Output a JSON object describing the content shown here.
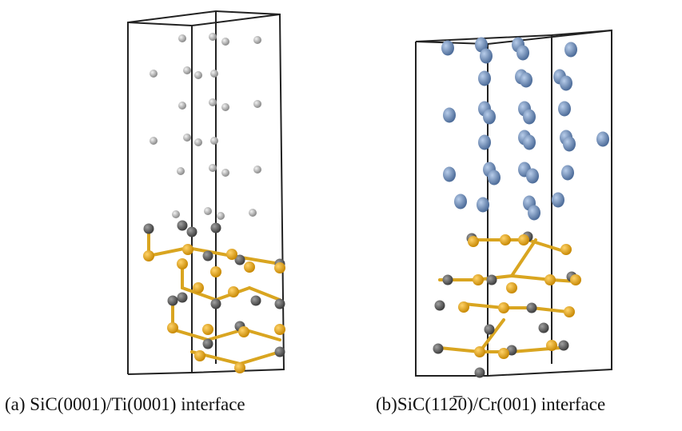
{
  "figure": {
    "panels": [
      {
        "caption": "(a) SiC(0001)/Ti(0001) interface"
      },
      {
        "caption": "(b)SiC(112̅0)/Cr(001) interface"
      }
    ]
  }
}
